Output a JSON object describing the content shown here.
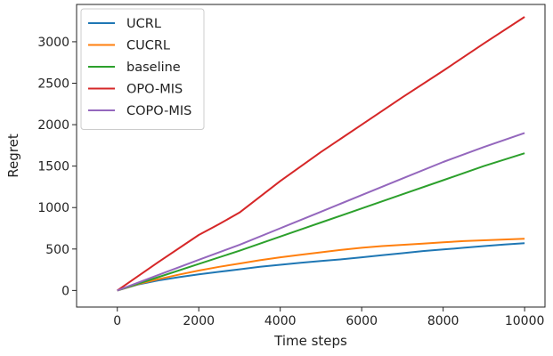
{
  "chart_data": {
    "type": "line",
    "title": "",
    "xlabel": "Time steps",
    "ylabel": "Regret",
    "xlim": [
      -1000,
      10500
    ],
    "ylim": [
      -200,
      3450
    ],
    "xticks": [
      0,
      2000,
      4000,
      6000,
      8000,
      10000
    ],
    "yticks": [
      0,
      500,
      1000,
      1500,
      2000,
      2500,
      3000
    ],
    "grid": false,
    "legend_position": "top-left",
    "series": [
      {
        "name": "UCRL",
        "color": "#1f77b4",
        "x": [
          0,
          500,
          1000,
          1500,
          2000,
          2500,
          3000,
          3500,
          4000,
          4500,
          5000,
          5500,
          6000,
          6500,
          7000,
          7500,
          8000,
          8500,
          9000,
          9500,
          10000
        ],
        "y": [
          0,
          70,
          120,
          160,
          195,
          225,
          255,
          285,
          310,
          335,
          355,
          375,
          400,
          425,
          450,
          475,
          495,
          515,
          535,
          555,
          570
        ]
      },
      {
        "name": "CUCRL",
        "color": "#ff7f0e",
        "x": [
          0,
          500,
          1000,
          1500,
          2000,
          2500,
          3000,
          3500,
          4000,
          4500,
          5000,
          5500,
          6000,
          6500,
          7000,
          7500,
          8000,
          8500,
          9000,
          9500,
          10000
        ],
        "y": [
          0,
          75,
          135,
          190,
          240,
          285,
          325,
          365,
          400,
          430,
          460,
          490,
          515,
          535,
          550,
          565,
          580,
          595,
          605,
          615,
          625
        ]
      },
      {
        "name": "baseline",
        "color": "#2ca02c",
        "x": [
          0,
          1000,
          2000,
          3000,
          4000,
          5000,
          6000,
          7000,
          8000,
          9000,
          10000
        ],
        "y": [
          0,
          160,
          320,
          480,
          650,
          820,
          990,
          1160,
          1330,
          1500,
          1655
        ]
      },
      {
        "name": "OPO-MIS",
        "color": "#d62728",
        "x": [
          0,
          1000,
          2000,
          2500,
          3000,
          4000,
          5000,
          6000,
          7000,
          8000,
          9000,
          10000
        ],
        "y": [
          0,
          340,
          670,
          800,
          940,
          1320,
          1670,
          2000,
          2330,
          2650,
          2980,
          3300
        ]
      },
      {
        "name": "COPO-MIS",
        "color": "#9467bd",
        "x": [
          0,
          1000,
          2000,
          3000,
          4000,
          5000,
          6000,
          7000,
          8000,
          9000,
          10000
        ],
        "y": [
          0,
          185,
          370,
          550,
          750,
          950,
          1150,
          1350,
          1550,
          1730,
          1900
        ]
      }
    ]
  }
}
